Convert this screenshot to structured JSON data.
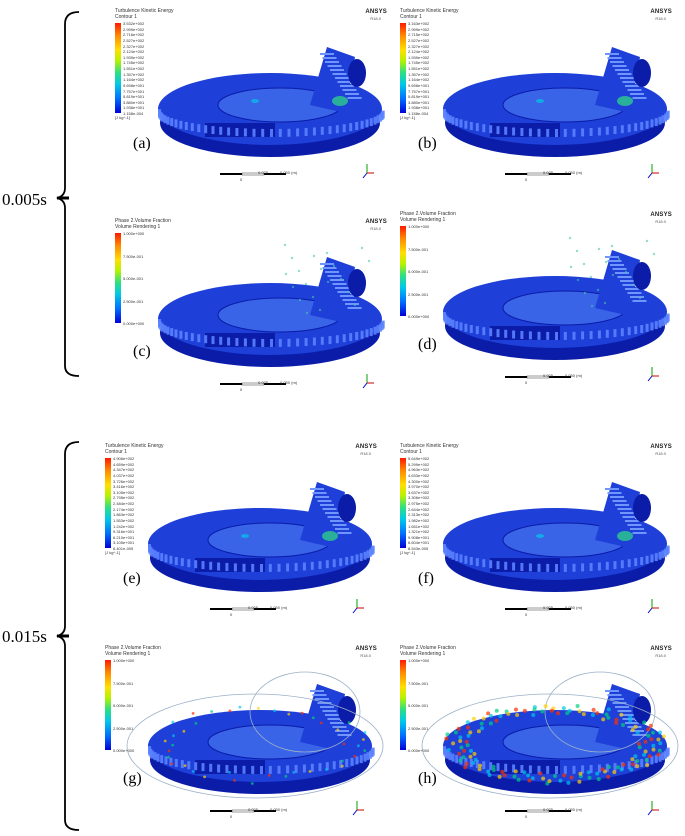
{
  "times": [
    "0.005s",
    "0.015s"
  ],
  "brand": {
    "name": "ANSYS",
    "sub": "R18.0"
  },
  "colors": {
    "mesh": "#1e3fd8",
    "dark": "#0a1ca8",
    "hot": "#ffe000",
    "accent": "#2ee080"
  },
  "panels": [
    {
      "letter": "(a)",
      "title": "Turbulence Kinetic Energy",
      "subtitle": "Contour 1",
      "unit": "[J kg^-1]",
      "ticks": [
        "3.532e+002",
        "2.999e+002",
        "2.716e+002",
        "2.527e+002",
        "2.327e+002",
        "2.124e+002",
        "1.939e+002",
        "1.745e+002",
        "1.551e+002",
        "1.357e+002",
        "1.164e+002",
        "9.698e+001",
        "7.757e+001",
        "5.819e+001",
        "3.880e+001",
        "1.938e+001",
        "1.158e-004"
      ],
      "scale": [
        "0",
        "0.025",
        "0.050 (m)"
      ]
    },
    {
      "letter": "(b)",
      "title": "Turbulence Kinetic Energy",
      "subtitle": "Contour 1",
      "unit": "[J kg^-1]",
      "ticks": [
        "3.163e+002",
        "2.999e+002",
        "2.715e+002",
        "2.527e+002",
        "2.327e+002",
        "2.124e+002",
        "1.939e+002",
        "1.745e+002",
        "1.551e+002",
        "1.357e+002",
        "1.164e+002",
        "9.698e+001",
        "7.757e+001",
        "5.819e+001",
        "3.880e+001",
        "1.938e+001",
        "1.158e-004"
      ],
      "scale": [
        "0",
        "0.025",
        "0.050 (m)"
      ]
    },
    {
      "letter": "(c)",
      "title": "Phase 2.Volume Fraction",
      "subtitle": "Volume Rendering 1",
      "unit": "",
      "ticks": [
        "1.000e+000",
        "7.500e-001",
        "5.000e-001",
        "2.500e-001",
        "0.000e+000"
      ],
      "scale": [
        "0",
        "0.025",
        "0.050 (m)"
      ]
    },
    {
      "letter": "(d)",
      "title": "Phase 2.Volume Fraction",
      "subtitle": "Volume Rendering 1",
      "unit": "",
      "ticks": [
        "1.000e+000",
        "7.500e-001",
        "5.000e-001",
        "2.500e-001",
        "0.000e+000"
      ],
      "scale": [
        "0",
        "0.025",
        "0.050 (m)"
      ]
    },
    {
      "letter": "(e)",
      "title": "Turbulence Kinetic Energy",
      "subtitle": "Contour 1",
      "unit": "[J kg^-1]",
      "ticks": [
        "4.906e+002",
        "4.659e+002",
        "4.347e+002",
        "4.037e+002",
        "3.726e+002",
        "3.416e+002",
        "3.105e+002",
        "2.795e+002",
        "2.484e+002",
        "2.174e+002",
        "1.863e+002",
        "1.553e+002",
        "1.242e+002",
        "9.316e+001",
        "6.210e+001",
        "3.105e+001",
        "6.401e-005"
      ],
      "scale": [
        "0",
        "0.025",
        "0.050 (m)"
      ]
    },
    {
      "letter": "(f)",
      "title": "Turbulence Kinetic Energy",
      "subtitle": "Contour 1",
      "unit": "[J kg^-1]",
      "ticks": [
        "5.649e+002",
        "5.299e+002",
        "4.963e+002",
        "4.633e+002",
        "4.300e+002",
        "3.970e+002",
        "3.637e+002",
        "3.306e+002",
        "2.975e+002",
        "2.644e+002",
        "2.313e+002",
        "1.982e+002",
        "1.651e+002",
        "1.321e+002",
        "9.908e+001",
        "6.604e+001",
        "8.543e-005"
      ],
      "scale": [
        "0",
        "0.025",
        "0.050 (m)"
      ]
    },
    {
      "letter": "(g)",
      "title": "Phase 2.Volume Fraction",
      "subtitle": "Volume Rendering 1",
      "unit": "",
      "ticks": [
        "1.000e+000",
        "7.500e-001",
        "5.000e-001",
        "2.500e-001",
        "0.000e+000"
      ],
      "scale": [
        "0",
        "0.025",
        "0.050 (m)"
      ]
    },
    {
      "letter": "(h)",
      "title": "Phase 2.Volume Fraction",
      "subtitle": "Volume Rendering 1",
      "unit": "",
      "ticks": [
        "1.000e+000",
        "7.500e-001",
        "5.000e-001",
        "2.500e-001",
        "0.000e+000"
      ],
      "scale": [
        "0",
        "0.025",
        "0.050 (m)"
      ]
    }
  ]
}
